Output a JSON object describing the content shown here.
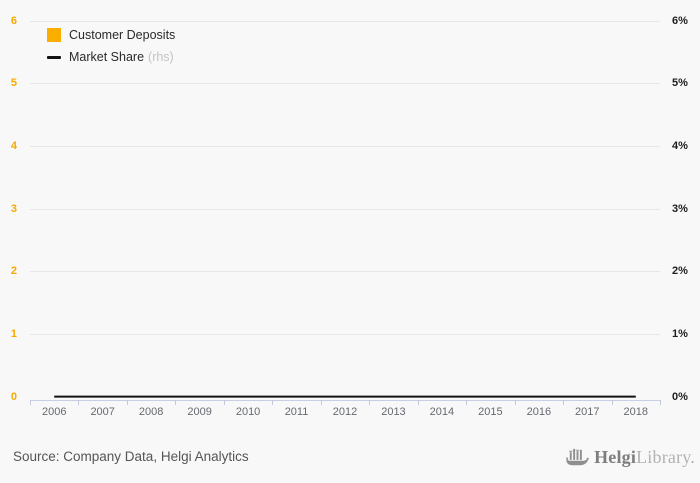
{
  "chart_data": {
    "type": "bar+line",
    "categories": [
      "2006",
      "2007",
      "2008",
      "2009",
      "2010",
      "2011",
      "2012",
      "2013",
      "2014",
      "2015",
      "2016",
      "2017",
      "2018"
    ],
    "series": [
      {
        "name": "Customer Deposits",
        "type": "bar",
        "axis": "left",
        "color": "#f9ae00",
        "values": [
          0,
          0,
          0,
          0,
          0,
          0,
          0,
          0,
          0,
          0,
          0,
          0,
          0
        ]
      },
      {
        "name": "Market Share",
        "type": "line",
        "axis": "right",
        "color": "#121212",
        "values": [
          0,
          0,
          0,
          0,
          0,
          0,
          0,
          0,
          0,
          0,
          0,
          0,
          0
        ]
      }
    ],
    "left_axis": {
      "min": 0,
      "max": 6,
      "ticks": [
        "6",
        "5",
        "4",
        "3",
        "2",
        "1",
        "0"
      ]
    },
    "right_axis": {
      "min": 0,
      "max": 6,
      "unit": "%",
      "ticks": [
        "6%",
        "5%",
        "4%",
        "3%",
        "2%",
        "1%",
        "0%"
      ]
    },
    "grid": true,
    "legend_position": "top-left"
  },
  "legend": {
    "deposits_label": "Customer Deposits",
    "market_share_label": "Market Share",
    "market_share_note": "(rhs)"
  },
  "footer": {
    "source": "Source: Company Data, Helgi Analytics",
    "logo_text_dark": "Helgi",
    "logo_text_light": "Library."
  },
  "colors": {
    "accent_orange": "#f9ae00",
    "line_black": "#121212",
    "grid_line": "#e7e7ea",
    "axis_line": "#c8cee4",
    "x_label": "#666a70",
    "right_label": "#1d1d1d",
    "rhs_note": "#c3c3c3",
    "source_text": "#555555",
    "background": "#f8f8f8",
    "logo_dark": "#7d7d7d",
    "logo_light": "#b2b2b2"
  }
}
